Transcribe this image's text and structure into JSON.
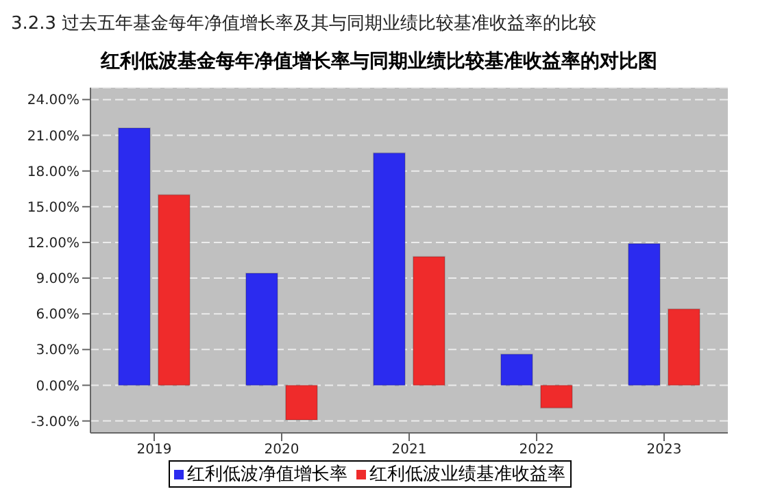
{
  "chart_data": {
    "type": "bar",
    "subtitle": "3.2.3 过去五年基金每年净值增长率及其与同期业绩比较基准收益率的比较",
    "title": "红利低波基金每年净值增长率与同期业绩比较基准收益率的对比图",
    "categories": [
      "2019",
      "2020",
      "2021",
      "2022",
      "2023"
    ],
    "series": [
      {
        "name": "红利低波净值增长率",
        "color": "#2b2bef",
        "values": [
          21.6,
          9.4,
          19.5,
          2.6,
          11.9
        ]
      },
      {
        "name": "红利低波业绩基准收益率",
        "color": "#ef2b2b",
        "values": [
          16.0,
          -2.9,
          10.8,
          -1.9,
          6.4
        ]
      }
    ],
    "ylim": [
      -4,
      25
    ],
    "yticks": [
      {
        "value": -3,
        "label": "-3.00%"
      },
      {
        "value": 0,
        "label": "0.00%"
      },
      {
        "value": 3,
        "label": "3.00%"
      },
      {
        "value": 6,
        "label": "6.00%"
      },
      {
        "value": 9,
        "label": "9.00%"
      },
      {
        "value": 12,
        "label": "12.00%"
      },
      {
        "value": 15,
        "label": "15.00%"
      },
      {
        "value": 18,
        "label": "18.00%"
      },
      {
        "value": 21,
        "label": "21.00%"
      },
      {
        "value": 24,
        "label": "24.00%"
      }
    ],
    "grid": "y",
    "legend": "bottom"
  }
}
